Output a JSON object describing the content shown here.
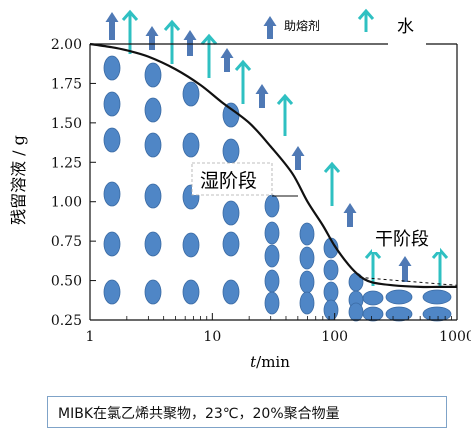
{
  "chart_data": {
    "type": "line",
    "x_scale": "log",
    "xlim": [
      1,
      1000
    ],
    "ylim": [
      0.25,
      2.0
    ],
    "xlabel": "t/min",
    "xlabel_italic": "t",
    "xlabel_unit": "/min",
    "ylabel": "残留溶液 / g",
    "x_ticks": [
      "1",
      "10",
      "100",
      "1000"
    ],
    "y_ticks": [
      "2.00",
      "1.75",
      "1.50",
      "1.25",
      "1.00",
      "0.75",
      "0.50",
      "0.25"
    ],
    "series": [
      {
        "x": [
          1,
          1.5,
          2,
          3,
          5,
          8,
          12,
          20,
          30,
          45,
          60,
          80,
          100,
          130,
          160,
          200,
          300,
          500,
          700,
          1000
        ],
        "y": [
          2.0,
          1.98,
          1.96,
          1.92,
          1.84,
          1.74,
          1.63,
          1.5,
          1.35,
          1.18,
          1.0,
          0.85,
          0.72,
          0.6,
          0.53,
          0.49,
          0.47,
          0.46,
          0.46,
          0.46
        ]
      }
    ],
    "legend": {
      "flux": "助熔剂",
      "water": "水"
    },
    "annotations": {
      "wet_stage": "湿阶段",
      "dry_stage": "干阶段"
    },
    "colors": {
      "curve": "#111111",
      "dark_arrow": "#4f79b5",
      "teal_arrow": "#2fc0c2",
      "droplet": "#4f86c6",
      "droplet_edge": "#3a6aa3"
    }
  },
  "caption": "MIBK在氯乙烯共聚物，23℃，20%聚合物量"
}
